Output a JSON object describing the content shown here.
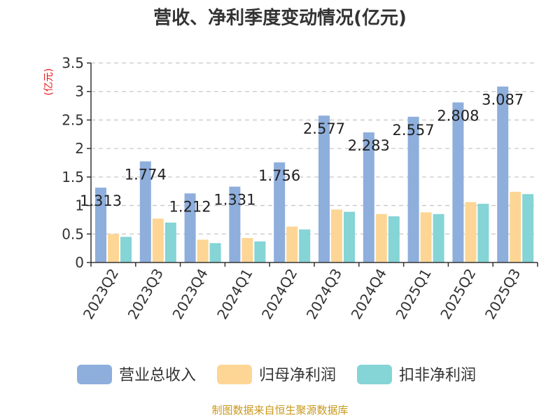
{
  "chart_data": {
    "type": "bar",
    "title": "营收、净利季度变动情况(亿元)",
    "ylabel": "(亿元)",
    "ylim": [
      0,
      3.5
    ],
    "yticks": [
      0,
      0.5,
      1,
      1.5,
      2,
      2.5,
      3,
      3.5
    ],
    "ytick_labels": [
      "0",
      "0.5",
      "1",
      "1.5",
      "2",
      "2.5",
      "3",
      "3.5"
    ],
    "grid": true,
    "legend_position": "bottom",
    "categories": [
      "2023Q2",
      "2023Q3",
      "2023Q4",
      "2024Q1",
      "2024Q2",
      "2024Q3",
      "2024Q4",
      "2025Q1",
      "2025Q2",
      "2025Q3"
    ],
    "series": [
      {
        "name": "营业总收入",
        "color": "#8eaedc",
        "values": [
          1.313,
          1.774,
          1.212,
          1.331,
          1.756,
          2.577,
          2.283,
          2.557,
          2.808,
          3.087
        ]
      },
      {
        "name": "归母净利润",
        "color": "#fdd695",
        "values": [
          0.5,
          0.77,
          0.4,
          0.43,
          0.63,
          0.93,
          0.85,
          0.88,
          1.06,
          1.24
        ]
      },
      {
        "name": "扣非净利润",
        "color": "#85d4d6",
        "values": [
          0.45,
          0.7,
          0.34,
          0.37,
          0.58,
          0.89,
          0.81,
          0.85,
          1.03,
          1.2
        ]
      }
    ],
    "data_labels": [
      "1.313",
      "1.774",
      "1.212",
      "1.331",
      "1.756",
      "2.577",
      "2.283",
      "2.557",
      "2.808",
      "3.087"
    ],
    "source": "制图数据来自恒生聚源数据库"
  }
}
